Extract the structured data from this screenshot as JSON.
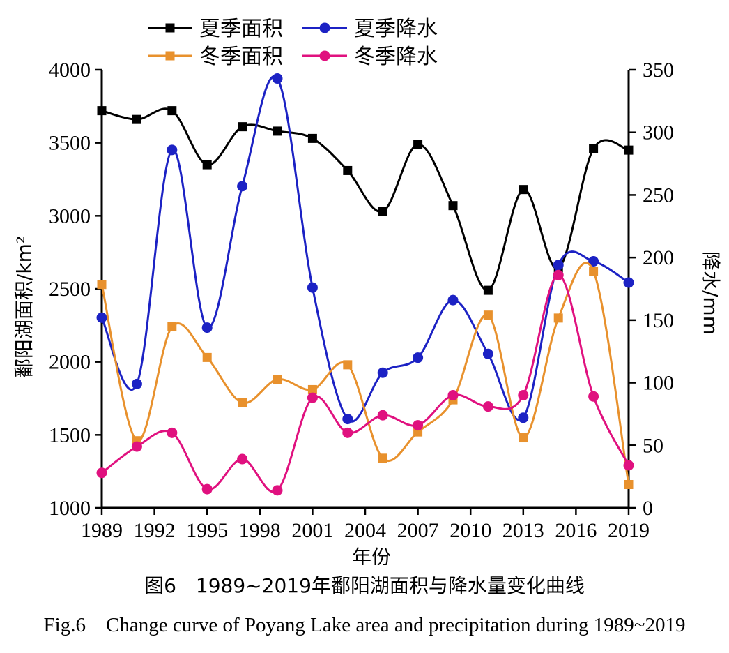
{
  "caption": {
    "cn": "图6　1989~2019年鄱阳湖面积与降水量变化曲线",
    "en": "Fig.6　Change curve of Poyang Lake area and precipitation during 1989~2019"
  },
  "chart_data": {
    "type": "line",
    "xlabel": "年份",
    "ylabel_left": "鄱阳湖面积/km²",
    "ylabel_right": "降水/mm",
    "x_ticks": [
      "1989",
      "1992",
      "1995",
      "1998",
      "2001",
      "2004",
      "2007",
      "2010",
      "2013",
      "2016",
      "2019"
    ],
    "xlim": [
      1989,
      2019
    ],
    "ylim_left": [
      1000,
      4000
    ],
    "ylim_right": [
      0,
      350
    ],
    "y_ticks_left": [
      "1000",
      "1500",
      "2000",
      "2500",
      "3000",
      "3500",
      "4000"
    ],
    "y_ticks_right": [
      "0",
      "50",
      "100",
      "150",
      "200",
      "250",
      "300",
      "350"
    ],
    "legend_position": "top",
    "series": [
      {
        "name": "夏季面积",
        "axis": "left",
        "marker": "square",
        "color": "#000000",
        "x": [
          1989,
          1991,
          1993,
          1995,
          1997,
          1999,
          2001,
          2003,
          2005,
          2007,
          2009,
          2011,
          2013,
          2015,
          2017,
          2019
        ],
        "values": [
          3720,
          3660,
          3720,
          3350,
          3610,
          3580,
          3530,
          3310,
          3030,
          3490,
          3070,
          2490,
          3180,
          2640,
          3460,
          3450
        ]
      },
      {
        "name": "夏季降水",
        "axis": "right",
        "marker": "circle",
        "color": "#1c22c4",
        "x": [
          1989,
          1991,
          1993,
          1995,
          1997,
          1999,
          2001,
          2003,
          2005,
          2007,
          2009,
          2011,
          2013,
          2015,
          2017,
          2019
        ],
        "values": [
          152,
          99,
          286,
          144,
          257,
          343,
          176,
          71,
          108,
          120,
          166,
          123,
          72,
          194,
          197,
          180
        ]
      },
      {
        "name": "冬季面积",
        "axis": "left",
        "marker": "square",
        "color": "#e8912d",
        "x": [
          1989,
          1991,
          1993,
          1995,
          1997,
          1999,
          2001,
          2003,
          2005,
          2007,
          2009,
          2011,
          2013,
          2015,
          2017,
          2019
        ],
        "values": [
          2530,
          1460,
          2240,
          2030,
          1720,
          1880,
          1810,
          1980,
          1340,
          1520,
          1740,
          2320,
          1480,
          2300,
          2620,
          1160
        ]
      },
      {
        "name": "冬季降水",
        "axis": "right",
        "marker": "circle",
        "color": "#e0117f",
        "x": [
          1989,
          1991,
          1993,
          1995,
          1997,
          1999,
          2001,
          2003,
          2005,
          2007,
          2009,
          2011,
          2013,
          2015,
          2017,
          2019
        ],
        "values": [
          28,
          49,
          60,
          15,
          39,
          14,
          88,
          60,
          74,
          66,
          90,
          81,
          90,
          186,
          89,
          34
        ]
      }
    ]
  }
}
